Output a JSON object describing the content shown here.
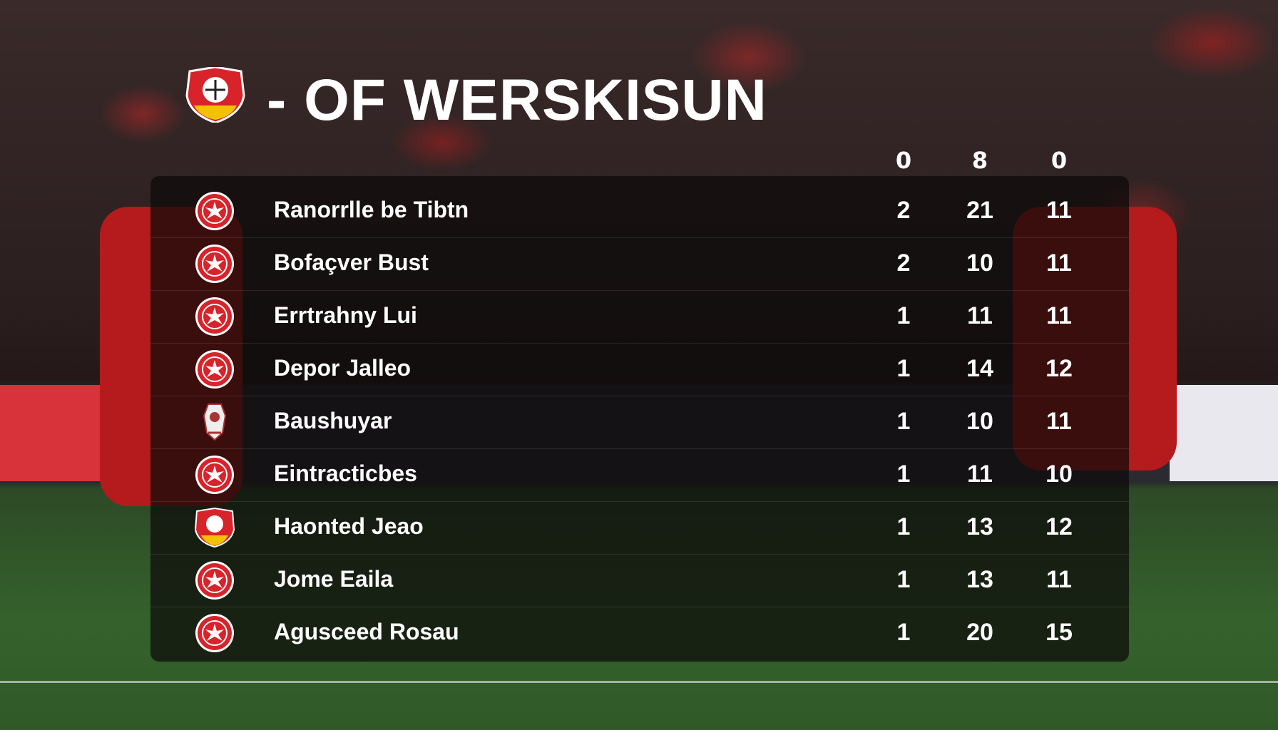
{
  "header": {
    "title": "- OF WERSKISUN",
    "logo": "club-crest",
    "columns": [
      "0",
      "8",
      "0"
    ]
  },
  "rows": [
    {
      "name": "Ranorrlle be Tibtn",
      "crest": "eagle-crest",
      "v1": "2",
      "v2": "21",
      "v3": "11"
    },
    {
      "name": "Bofaçver Bust",
      "crest": "eagle-crest",
      "v1": "2",
      "v2": "10",
      "v3": "11"
    },
    {
      "name": "Errtrahny Lui",
      "crest": "eagle-crest",
      "v1": "1",
      "v2": "11",
      "v3": "11"
    },
    {
      "name": "Depor Jalleo",
      "crest": "eagle-crest",
      "v1": "1",
      "v2": "14",
      "v3": "12"
    },
    {
      "name": "Baushuyar",
      "crest": "mascot-crest",
      "v1": "1",
      "v2": "10",
      "v3": "11"
    },
    {
      "name": "Eintracticbes",
      "crest": "eagle-crest",
      "v1": "1",
      "v2": "11",
      "v3": "10"
    },
    {
      "name": "Haonted Jeao",
      "crest": "club-crest",
      "v1": "1",
      "v2": "13",
      "v3": "12"
    },
    {
      "name": "Jome Eaila",
      "crest": "eagle-crest",
      "v1": "1",
      "v2": "13",
      "v3": "11"
    },
    {
      "name": "Agusceed Rosau",
      "crest": "eagle-crest",
      "v1": "1",
      "v2": "20",
      "v3": "15"
    }
  ],
  "colors": {
    "accent": "#d8232a",
    "panel": "#0c0a0a",
    "text": "#ffffff",
    "crest_gold": "#f2c200"
  }
}
